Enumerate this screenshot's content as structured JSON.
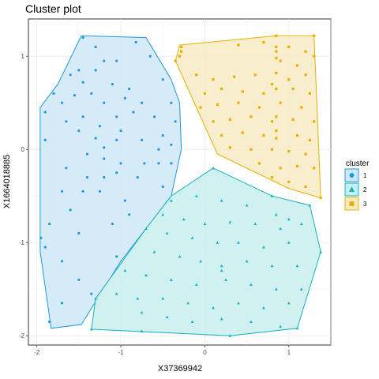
{
  "chart_data": {
    "type": "scatter",
    "title": "Cluster plot",
    "xlabel": "X37369942",
    "ylabel": "X1664018885",
    "xlim": [
      -2.1,
      1.5
    ],
    "ylim": [
      -2.1,
      1.4
    ],
    "x_ticks": [
      -2,
      -1,
      0,
      1
    ],
    "y_ticks": [
      -2,
      -1,
      0,
      1
    ],
    "grid": true,
    "legend_position": "right",
    "legend_title": "cluster",
    "series": [
      {
        "name": "1",
        "shape": "circle",
        "color": "#1f9ad6",
        "fill": "#cfe7f7",
        "hull": [
          [
            -1.47,
            1.22
          ],
          [
            -0.7,
            1.2
          ],
          [
            -0.4,
            0.75
          ],
          [
            -0.3,
            0.5
          ],
          [
            -0.28,
            0.0
          ],
          [
            -0.4,
            -0.5
          ],
          [
            -1.0,
            -1.2
          ],
          [
            -1.47,
            -1.88
          ],
          [
            -1.83,
            -1.92
          ],
          [
            -1.96,
            -1.1
          ],
          [
            -1.96,
            0.45
          ],
          [
            -1.75,
            0.7
          ]
        ],
        "points": [
          [
            -1.45,
            1.2
          ],
          [
            -1.3,
            1.1
          ],
          [
            -1.2,
            0.95
          ],
          [
            -1.05,
            0.95
          ],
          [
            -0.82,
            1.15
          ],
          [
            -0.65,
            1.0
          ],
          [
            -1.6,
            0.8
          ],
          [
            -1.5,
            0.85
          ],
          [
            -1.8,
            0.6
          ],
          [
            -1.7,
            0.5
          ],
          [
            -1.9,
            0.4
          ],
          [
            -1.45,
            0.72
          ],
          [
            -1.3,
            0.85
          ],
          [
            -1.1,
            0.7
          ],
          [
            -0.9,
            0.65
          ],
          [
            -0.5,
            0.75
          ],
          [
            -1.55,
            0.58
          ],
          [
            -1.35,
            0.6
          ],
          [
            -1.2,
            0.5
          ],
          [
            -0.95,
            0.55
          ],
          [
            -0.75,
            0.5
          ],
          [
            -0.4,
            0.5
          ],
          [
            -1.65,
            0.3
          ],
          [
            -1.45,
            0.35
          ],
          [
            -1.25,
            0.25
          ],
          [
            -1.05,
            0.35
          ],
          [
            -0.85,
            0.4
          ],
          [
            -0.6,
            0.35
          ],
          [
            -0.35,
            0.3
          ],
          [
            -1.5,
            0.2
          ],
          [
            -1.3,
            0.12
          ],
          [
            -1.05,
            0.1
          ],
          [
            -0.75,
            0.1
          ],
          [
            -0.5,
            0.15
          ],
          [
            -1.2,
            0.02
          ],
          [
            -0.55,
            0.0
          ],
          [
            -0.4,
            0.05
          ],
          [
            -1.9,
            0.1
          ],
          [
            -1.4,
            -0.05
          ],
          [
            -1.2,
            -0.1
          ],
          [
            -1.0,
            -0.15
          ],
          [
            -0.72,
            -0.15
          ],
          [
            -0.55,
            -0.15
          ],
          [
            -0.4,
            -0.15
          ],
          [
            -1.65,
            -0.2
          ],
          [
            -1.4,
            -0.3
          ],
          [
            -1.2,
            -0.3
          ],
          [
            -1.05,
            -0.25
          ],
          [
            -0.8,
            -0.3
          ],
          [
            -0.5,
            -0.4
          ],
          [
            -1.7,
            -0.45
          ],
          [
            -1.45,
            -0.45
          ],
          [
            -1.25,
            -0.45
          ],
          [
            -0.95,
            -0.55
          ],
          [
            -1.6,
            -0.65
          ],
          [
            -1.85,
            -0.8
          ],
          [
            -1.5,
            -0.9
          ],
          [
            -1.95,
            -0.95
          ],
          [
            -1.9,
            -1.05
          ],
          [
            -1.7,
            -1.2
          ],
          [
            -1.5,
            -1.4
          ],
          [
            -1.35,
            -1.55
          ],
          [
            -1.7,
            -1.65
          ],
          [
            -1.85,
            -1.85
          ],
          [
            -1.05,
            -1.15
          ],
          [
            -0.9,
            -0.7
          ],
          [
            -1.1,
            -0.8
          ],
          [
            -1.0,
            0.2
          ]
        ]
      },
      {
        "name": "2",
        "shape": "triangle",
        "color": "#11b3c2",
        "fill": "#c9eeef",
        "hull": [
          [
            0.1,
            -0.2
          ],
          [
            0.8,
            -0.5
          ],
          [
            1.25,
            -0.6
          ],
          [
            1.38,
            -1.1
          ],
          [
            1.1,
            -1.92
          ],
          [
            0.3,
            -2.0
          ],
          [
            -1.35,
            -1.93
          ],
          [
            -1.3,
            -1.6
          ],
          [
            -0.7,
            -0.85
          ],
          [
            -0.4,
            -0.5
          ]
        ],
        "points": [
          [
            0.1,
            -0.2
          ],
          [
            0.8,
            -0.5
          ],
          [
            1.25,
            -0.6
          ],
          [
            1.38,
            -1.1
          ],
          [
            -0.4,
            -0.55
          ],
          [
            -0.1,
            -0.5
          ],
          [
            0.2,
            -0.55
          ],
          [
            0.5,
            -0.6
          ],
          [
            0.85,
            -0.7
          ],
          [
            1.0,
            -0.75
          ],
          [
            1.15,
            -0.8
          ],
          [
            -0.5,
            -0.7
          ],
          [
            -0.25,
            -0.75
          ],
          [
            0.0,
            -0.8
          ],
          [
            0.3,
            -0.78
          ],
          [
            0.6,
            -0.8
          ],
          [
            0.9,
            -0.85
          ],
          [
            -0.7,
            -0.85
          ],
          [
            -0.45,
            -0.9
          ],
          [
            -0.15,
            -0.95
          ],
          [
            0.15,
            -1.0
          ],
          [
            0.4,
            -1.0
          ],
          [
            0.7,
            -1.05
          ],
          [
            1.0,
            -1.0
          ],
          [
            -0.6,
            -1.1
          ],
          [
            -0.3,
            -1.15
          ],
          [
            -0.05,
            -1.2
          ],
          [
            0.2,
            -1.25
          ],
          [
            0.5,
            -1.2
          ],
          [
            0.8,
            -1.25
          ],
          [
            1.1,
            -1.25
          ],
          [
            -0.95,
            -1.3
          ],
          [
            -0.7,
            -1.35
          ],
          [
            -0.4,
            -1.4
          ],
          [
            -0.1,
            -1.45
          ],
          [
            0.25,
            -1.4
          ],
          [
            0.55,
            -1.45
          ],
          [
            0.85,
            -1.5
          ],
          [
            1.15,
            -1.5
          ],
          [
            -1.3,
            -1.6
          ],
          [
            -1.05,
            -1.55
          ],
          [
            -0.8,
            -1.6
          ],
          [
            -0.5,
            -1.6
          ],
          [
            -0.2,
            -1.65
          ],
          [
            0.1,
            -1.7
          ],
          [
            0.4,
            -1.65
          ],
          [
            0.7,
            -1.7
          ],
          [
            1.0,
            -1.65
          ],
          [
            -0.75,
            -1.75
          ],
          [
            -0.45,
            -1.8
          ],
          [
            -0.15,
            -1.85
          ],
          [
            0.2,
            -1.82
          ],
          [
            0.55,
            -1.85
          ],
          [
            0.9,
            -1.9
          ],
          [
            1.1,
            -1.92
          ],
          [
            -1.35,
            -1.93
          ],
          [
            -0.75,
            -1.95
          ],
          [
            0.3,
            -2.0
          ],
          [
            0.2,
            -1.3
          ]
        ]
      },
      {
        "name": "3",
        "shape": "square",
        "color": "#e0b400",
        "fill": "#f7eac4",
        "hull": [
          [
            -0.35,
            0.95
          ],
          [
            -0.3,
            1.12
          ],
          [
            0.85,
            1.22
          ],
          [
            1.3,
            1.22
          ],
          [
            1.38,
            -0.52
          ],
          [
            1.0,
            -0.42
          ],
          [
            0.15,
            -0.05
          ]
        ],
        "points": [
          [
            -0.35,
            0.95
          ],
          [
            -0.3,
            1.0
          ],
          [
            -0.28,
            1.05
          ],
          [
            -0.28,
            1.1
          ],
          [
            0.85,
            1.22
          ],
          [
            1.3,
            1.22
          ],
          [
            0.4,
            1.12
          ],
          [
            0.7,
            1.15
          ],
          [
            0.85,
            1.1
          ],
          [
            1.0,
            1.1
          ],
          [
            1.2,
            1.05
          ],
          [
            1.3,
            1.0
          ],
          [
            0.85,
            1.05
          ],
          [
            0.85,
            0.98
          ],
          [
            0.9,
            0.95
          ],
          [
            1.1,
            0.9
          ],
          [
            -0.1,
            0.8
          ],
          [
            0.1,
            0.75
          ],
          [
            0.35,
            0.78
          ],
          [
            0.6,
            0.8
          ],
          [
            0.85,
            0.82
          ],
          [
            1.0,
            0.75
          ],
          [
            1.2,
            0.8
          ],
          [
            0.0,
            0.6
          ],
          [
            0.2,
            0.65
          ],
          [
            0.45,
            0.62
          ],
          [
            0.7,
            0.6
          ],
          [
            0.8,
            0.7
          ],
          [
            1.05,
            0.65
          ],
          [
            1.25,
            0.6
          ],
          [
            -0.05,
            0.45
          ],
          [
            0.15,
            0.48
          ],
          [
            0.4,
            0.5
          ],
          [
            0.65,
            0.45
          ],
          [
            0.9,
            0.5
          ],
          [
            1.15,
            0.45
          ],
          [
            0.1,
            0.3
          ],
          [
            0.3,
            0.32
          ],
          [
            0.55,
            0.35
          ],
          [
            0.8,
            0.3
          ],
          [
            1.05,
            0.32
          ],
          [
            1.3,
            0.3
          ],
          [
            0.2,
            0.15
          ],
          [
            0.45,
            0.18
          ],
          [
            0.7,
            0.15
          ],
          [
            0.85,
            0.12
          ],
          [
            1.1,
            0.15
          ],
          [
            1.25,
            0.1
          ],
          [
            0.3,
            0.02
          ],
          [
            0.55,
            0.0
          ],
          [
            0.8,
            0.0
          ],
          [
            1.0,
            -0.02
          ],
          [
            1.2,
            -0.05
          ],
          [
            0.65,
            -0.15
          ],
          [
            0.9,
            -0.2
          ],
          [
            1.1,
            -0.18
          ],
          [
            1.3,
            -0.2
          ],
          [
            0.8,
            -0.3
          ],
          [
            1.0,
            -0.35
          ],
          [
            1.2,
            -0.4
          ],
          [
            1.38,
            -0.52
          ],
          [
            0.85,
            0.65
          ],
          [
            0.85,
            0.2
          ],
          [
            0.85,
            0.35
          ]
        ]
      }
    ]
  }
}
